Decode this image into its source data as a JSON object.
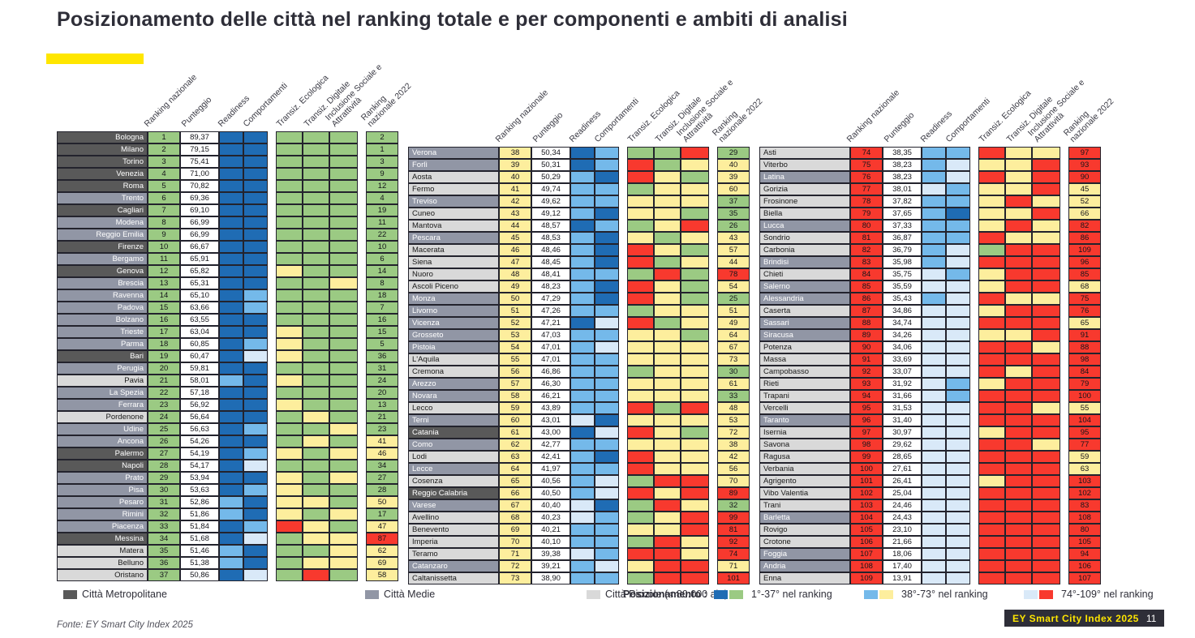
{
  "title": "Posizionamento delle città nel ranking totale e per componenti e ambiti di analisi",
  "accent_color": "#ffe600",
  "header_columns": [
    "Ranking nazionale",
    "Punteggio",
    "Readiness",
    "Comportamenti",
    "Transiz. Ecologica",
    "Transiz. Digitale",
    "Inclusione Sociale e Attrattività",
    "Ranking nazionale 2022"
  ],
  "palette": {
    "accent_terciles": {
      "1": "#9bca83",
      "2": "#fdee9d",
      "3": "#f8392e"
    },
    "blue_terciles": {
      "1": "#1f6cb4",
      "2": "#74b9ea",
      "3": "#d9e9f8"
    },
    "city_types": {
      "M": {
        "bg": "#595959",
        "fg": "#ffffff"
      },
      "Md": {
        "bg": "#9196a5",
        "fg": "#ffffff"
      },
      "P": {
        "bg": "#d9d9d9",
        "fg": "#1a1a1a"
      }
    }
  },
  "legend": {
    "city_types": [
      {
        "label": "Città Metropolitane",
        "color": "#595959"
      },
      {
        "label": "Città Medie",
        "color": "#9196a5"
      },
      {
        "label": "Città Piccole (< 80.000 ab.)",
        "color": "#d9d9d9"
      }
    ],
    "positioning_label": "Posizionamento :",
    "terciles": [
      {
        "label": "1°-37° nel ranking",
        "blue": "#1f6cb4",
        "accent": "#9bca83"
      },
      {
        "label": "38°-73° nel ranking",
        "blue": "#74b9ea",
        "accent": "#fdee9d"
      },
      {
        "label": "74°-109° nel ranking",
        "blue": "#d9e9f8",
        "accent": "#f8392e"
      }
    ]
  },
  "footer": {
    "source": "Fonte: EY Smart City Index 2025",
    "badge_title": "EY Smart City Index 2025",
    "badge_page": "11"
  },
  "chart_data": {
    "type": "table",
    "title": "Posizionamento delle città nel ranking totale e per componenti e ambiti di analisi",
    "columns": [
      "città",
      "tipo (M=metropolitana, Md=media, P=piccola)",
      "ranking nazionale",
      "punteggio",
      "readiness tercile (1=1°-37°,2=38°-73°,3=74°-109°)",
      "comportamenti tercile",
      "transiz. ecologica tercile",
      "transiz. digitale tercile",
      "inclusione sociale e attrattività tercile",
      "ranking nazionale 2022",
      "tercile 2022"
    ],
    "rows": [
      [
        "Bologna",
        "M",
        1,
        "89,37",
        1,
        1,
        1,
        1,
        1,
        2,
        1
      ],
      [
        "Milano",
        "M",
        2,
        "79,15",
        1,
        1,
        1,
        1,
        1,
        1,
        1
      ],
      [
        "Torino",
        "M",
        3,
        "75,41",
        1,
        1,
        1,
        1,
        1,
        3,
        1
      ],
      [
        "Venezia",
        "M",
        4,
        "71,00",
        1,
        1,
        1,
        1,
        1,
        9,
        1
      ],
      [
        "Roma",
        "M",
        5,
        "70,82",
        1,
        1,
        1,
        1,
        1,
        12,
        1
      ],
      [
        "Trento",
        "Md",
        6,
        "69,36",
        1,
        1,
        1,
        1,
        1,
        4,
        1
      ],
      [
        "Cagliari",
        "M",
        7,
        "69,10",
        1,
        1,
        1,
        1,
        1,
        19,
        1
      ],
      [
        "Modena",
        "Md",
        8,
        "66,99",
        1,
        1,
        1,
        1,
        1,
        11,
        1
      ],
      [
        "Reggio Emilia",
        "Md",
        9,
        "66,99",
        1,
        1,
        1,
        1,
        1,
        22,
        1
      ],
      [
        "Firenze",
        "M",
        10,
        "66,67",
        1,
        1,
        1,
        1,
        1,
        10,
        1
      ],
      [
        "Bergamo",
        "Md",
        11,
        "65,91",
        1,
        1,
        1,
        1,
        1,
        6,
        1
      ],
      [
        "Genova",
        "M",
        12,
        "65,82",
        1,
        1,
        2,
        1,
        1,
        14,
        1
      ],
      [
        "Brescia",
        "Md",
        13,
        "65,31",
        1,
        1,
        1,
        1,
        2,
        8,
        1
      ],
      [
        "Ravenna",
        "Md",
        14,
        "65,10",
        1,
        2,
        1,
        1,
        1,
        18,
        1
      ],
      [
        "Padova",
        "Md",
        15,
        "63,66",
        1,
        2,
        1,
        1,
        1,
        7,
        1
      ],
      [
        "Bolzano",
        "Md",
        16,
        "63,55",
        1,
        1,
        1,
        1,
        1,
        16,
        1
      ],
      [
        "Trieste",
        "Md",
        17,
        "63,04",
        1,
        1,
        2,
        1,
        1,
        15,
        1
      ],
      [
        "Parma",
        "Md",
        18,
        "60,85",
        1,
        2,
        2,
        1,
        1,
        5,
        1
      ],
      [
        "Bari",
        "M",
        19,
        "60,47",
        1,
        3,
        2,
        1,
        1,
        36,
        1
      ],
      [
        "Perugia",
        "Md",
        20,
        "59,81",
        1,
        1,
        1,
        1,
        1,
        31,
        1
      ],
      [
        "Pavia",
        "P",
        21,
        "58,01",
        2,
        1,
        2,
        1,
        1,
        24,
        1
      ],
      [
        "La Spezia",
        "Md",
        22,
        "57,18",
        1,
        1,
        1,
        1,
        1,
        20,
        1
      ],
      [
        "Ferrara",
        "Md",
        23,
        "56,92",
        1,
        1,
        2,
        1,
        1,
        13,
        1
      ],
      [
        "Pordenone",
        "P",
        24,
        "56,64",
        1,
        1,
        1,
        2,
        1,
        21,
        1
      ],
      [
        "Udine",
        "Md",
        25,
        "56,63",
        1,
        2,
        1,
        1,
        2,
        23,
        1
      ],
      [
        "Ancona",
        "Md",
        26,
        "54,26",
        1,
        1,
        1,
        2,
        1,
        41,
        2
      ],
      [
        "Palermo",
        "M",
        27,
        "54,19",
        1,
        2,
        2,
        1,
        2,
        46,
        2
      ],
      [
        "Napoli",
        "M",
        28,
        "54,17",
        1,
        3,
        1,
        1,
        1,
        34,
        1
      ],
      [
        "Prato",
        "Md",
        29,
        "53,94",
        1,
        1,
        2,
        1,
        2,
        27,
        1
      ],
      [
        "Pisa",
        "Md",
        30,
        "53,63",
        1,
        2,
        2,
        1,
        1,
        28,
        1
      ],
      [
        "Pesaro",
        "Md",
        31,
        "52,86",
        2,
        1,
        2,
        2,
        1,
        50,
        2
      ],
      [
        "Rimini",
        "Md",
        32,
        "51,86",
        2,
        1,
        2,
        1,
        2,
        17,
        1
      ],
      [
        "Piacenza",
        "Md",
        33,
        "51,84",
        1,
        2,
        3,
        2,
        1,
        47,
        2
      ],
      [
        "Messina",
        "M",
        34,
        "51,68",
        1,
        3,
        1,
        2,
        2,
        87,
        3
      ],
      [
        "Matera",
        "P",
        35,
        "51,46",
        2,
        1,
        1,
        1,
        2,
        62,
        2
      ],
      [
        "Belluno",
        "P",
        36,
        "51,38",
        2,
        1,
        1,
        2,
        2,
        69,
        2
      ],
      [
        "Oristano",
        "P",
        37,
        "50,86",
        1,
        3,
        1,
        3,
        1,
        58,
        2
      ],
      [
        "Verona",
        "Md",
        38,
        "50,34",
        1,
        2,
        1,
        1,
        3,
        29,
        1
      ],
      [
        "Forlì",
        "Md",
        39,
        "50,31",
        1,
        2,
        3,
        1,
        2,
        40,
        2
      ],
      [
        "Aosta",
        "P",
        40,
        "50,29",
        2,
        1,
        3,
        2,
        1,
        39,
        2
      ],
      [
        "Fermo",
        "P",
        41,
        "49,74",
        2,
        2,
        1,
        2,
        2,
        60,
        2
      ],
      [
        "Treviso",
        "Md",
        42,
        "49,62",
        2,
        2,
        2,
        2,
        2,
        37,
        1
      ],
      [
        "Cuneo",
        "P",
        43,
        "49,12",
        2,
        1,
        2,
        2,
        1,
        35,
        1
      ],
      [
        "Mantova",
        "P",
        44,
        "48,57",
        1,
        2,
        1,
        2,
        3,
        26,
        1
      ],
      [
        "Pescara",
        "Md",
        45,
        "48,53",
        2,
        1,
        2,
        1,
        2,
        43,
        2
      ],
      [
        "Macerata",
        "P",
        46,
        "48,46",
        2,
        1,
        3,
        2,
        1,
        57,
        2
      ],
      [
        "Siena",
        "P",
        47,
        "48,45",
        2,
        1,
        3,
        1,
        2,
        44,
        2
      ],
      [
        "Nuoro",
        "P",
        48,
        "48,41",
        2,
        2,
        1,
        3,
        1,
        78,
        3
      ],
      [
        "Ascoli Piceno",
        "P",
        49,
        "48,23",
        2,
        1,
        3,
        2,
        1,
        54,
        2
      ],
      [
        "Monza",
        "Md",
        50,
        "47,29",
        2,
        1,
        3,
        2,
        1,
        25,
        1
      ],
      [
        "Livorno",
        "Md",
        51,
        "47,26",
        2,
        2,
        1,
        2,
        2,
        51,
        2
      ],
      [
        "Vicenza",
        "Md",
        52,
        "47,21",
        1,
        3,
        3,
        1,
        2,
        49,
        2
      ],
      [
        "Grosseto",
        "Md",
        53,
        "47,03",
        2,
        2,
        2,
        2,
        1,
        64,
        2
      ],
      [
        "Pistoia",
        "Md",
        54,
        "47,01",
        2,
        3,
        2,
        2,
        2,
        67,
        2
      ],
      [
        "L'Aquila",
        "P",
        55,
        "47,01",
        2,
        2,
        2,
        2,
        2,
        73,
        2
      ],
      [
        "Cremona",
        "P",
        56,
        "46,86",
        2,
        2,
        1,
        2,
        2,
        30,
        1
      ],
      [
        "Arezzo",
        "Md",
        57,
        "46,30",
        2,
        2,
        2,
        2,
        2,
        61,
        2
      ],
      [
        "Novara",
        "Md",
        58,
        "46,21",
        2,
        2,
        2,
        2,
        2,
        33,
        1
      ],
      [
        "Lecco",
        "P",
        59,
        "43,89",
        2,
        2,
        3,
        1,
        3,
        48,
        2
      ],
      [
        "Terni",
        "Md",
        60,
        "43,01",
        3,
        1,
        2,
        2,
        2,
        53,
        2
      ],
      [
        "Catania",
        "M",
        61,
        "43,00",
        1,
        3,
        3,
        2,
        1,
        72,
        2
      ],
      [
        "Como",
        "Md",
        62,
        "42,77",
        2,
        2,
        2,
        2,
        2,
        38,
        2
      ],
      [
        "Lodi",
        "P",
        63,
        "42,41",
        2,
        1,
        3,
        2,
        2,
        42,
        2
      ],
      [
        "Lecce",
        "Md",
        64,
        "41,97",
        2,
        2,
        3,
        2,
        2,
        56,
        2
      ],
      [
        "Cosenza",
        "P",
        65,
        "40,56",
        2,
        3,
        1,
        3,
        3,
        70,
        2
      ],
      [
        "Reggio Calabria",
        "M",
        66,
        "40,50",
        2,
        3,
        3,
        2,
        3,
        89,
        3
      ],
      [
        "Varese",
        "Md",
        67,
        "40,40",
        3,
        1,
        1,
        3,
        2,
        32,
        1
      ],
      [
        "Avellino",
        "P",
        68,
        "40,23",
        3,
        2,
        1,
        2,
        3,
        99,
        3
      ],
      [
        "Benevento",
        "P",
        69,
        "40,21",
        2,
        2,
        2,
        2,
        3,
        81,
        3
      ],
      [
        "Imperia",
        "P",
        70,
        "40,10",
        2,
        2,
        1,
        3,
        2,
        92,
        3
      ],
      [
        "Teramo",
        "P",
        71,
        "39,38",
        3,
        2,
        3,
        3,
        2,
        74,
        3
      ],
      [
        "Catanzaro",
        "Md",
        72,
        "39,21",
        2,
        3,
        2,
        3,
        3,
        71,
        2
      ],
      [
        "Caltanissetta",
        "P",
        73,
        "38,90",
        2,
        2,
        1,
        3,
        3,
        101,
        3
      ],
      [
        "Asti",
        "P",
        74,
        "38,35",
        2,
        2,
        3,
        2,
        2,
        97,
        3
      ],
      [
        "Viterbo",
        "P",
        75,
        "38,23",
        2,
        3,
        2,
        2,
        3,
        93,
        3
      ],
      [
        "Latina",
        "Md",
        76,
        "38,23",
        2,
        3,
        3,
        2,
        3,
        90,
        3
      ],
      [
        "Gorizia",
        "P",
        77,
        "38,01",
        3,
        2,
        2,
        2,
        3,
        45,
        2
      ],
      [
        "Frosinone",
        "P",
        78,
        "37,82",
        2,
        2,
        2,
        3,
        2,
        52,
        2
      ],
      [
        "Biella",
        "P",
        79,
        "37,65",
        2,
        1,
        2,
        2,
        3,
        66,
        2
      ],
      [
        "Lucca",
        "Md",
        80,
        "37,33",
        2,
        2,
        2,
        3,
        2,
        82,
        3
      ],
      [
        "Sondrio",
        "P",
        81,
        "36,87",
        2,
        2,
        3,
        2,
        2,
        86,
        3
      ],
      [
        "Carbonia",
        "P",
        82,
        "36,79",
        2,
        3,
        1,
        3,
        3,
        109,
        3
      ],
      [
        "Brindisi",
        "Md",
        83,
        "35,98",
        2,
        3,
        3,
        3,
        3,
        96,
        3
      ],
      [
        "Chieti",
        "P",
        84,
        "35,75",
        3,
        2,
        2,
        3,
        3,
        85,
        3
      ],
      [
        "Salerno",
        "Md",
        85,
        "35,59",
        3,
        3,
        2,
        3,
        3,
        68,
        2
      ],
      [
        "Alessandria",
        "Md",
        86,
        "35,43",
        2,
        3,
        3,
        2,
        2,
        75,
        3
      ],
      [
        "Caserta",
        "P",
        87,
        "34,86",
        3,
        3,
        2,
        3,
        3,
        76,
        3
      ],
      [
        "Sassari",
        "Md",
        88,
        "34,74",
        3,
        3,
        3,
        3,
        3,
        65,
        2
      ],
      [
        "Siracusa",
        "Md",
        89,
        "34,26",
        3,
        3,
        2,
        2,
        3,
        91,
        3
      ],
      [
        "Potenza",
        "P",
        90,
        "34,06",
        3,
        3,
        3,
        3,
        2,
        88,
        3
      ],
      [
        "Massa",
        "P",
        91,
        "33,69",
        3,
        3,
        3,
        3,
        3,
        98,
        3
      ],
      [
        "Campobasso",
        "P",
        92,
        "33,07",
        3,
        3,
        3,
        2,
        3,
        84,
        3
      ],
      [
        "Rieti",
        "P",
        93,
        "31,92",
        3,
        2,
        2,
        3,
        3,
        79,
        3
      ],
      [
        "Trapani",
        "P",
        94,
        "31,66",
        3,
        2,
        3,
        3,
        3,
        100,
        3
      ],
      [
        "Vercelli",
        "P",
        95,
        "31,53",
        3,
        3,
        3,
        3,
        2,
        55,
        2
      ],
      [
        "Taranto",
        "Md",
        96,
        "31,40",
        3,
        3,
        3,
        3,
        3,
        104,
        3
      ],
      [
        "Isernia",
        "P",
        97,
        "30,97",
        3,
        3,
        2,
        3,
        3,
        95,
        3
      ],
      [
        "Savona",
        "P",
        98,
        "29,62",
        3,
        3,
        3,
        3,
        2,
        77,
        3
      ],
      [
        "Ragusa",
        "P",
        99,
        "28,65",
        3,
        3,
        3,
        3,
        3,
        59,
        2
      ],
      [
        "Verbania",
        "P",
        100,
        "27,61",
        3,
        3,
        3,
        3,
        3,
        63,
        2
      ],
      [
        "Agrigento",
        "P",
        101,
        "26,41",
        3,
        3,
        2,
        3,
        3,
        103,
        3
      ],
      [
        "Vibo Valentia",
        "P",
        102,
        "25,04",
        3,
        3,
        3,
        3,
        3,
        102,
        3
      ],
      [
        "Trani",
        "P",
        103,
        "24,46",
        3,
        3,
        3,
        3,
        3,
        83,
        3
      ],
      [
        "Barletta",
        "Md",
        104,
        "24,43",
        3,
        3,
        3,
        3,
        3,
        108,
        3
      ],
      [
        "Rovigo",
        "P",
        105,
        "23,10",
        3,
        3,
        3,
        3,
        3,
        80,
        3
      ],
      [
        "Crotone",
        "P",
        106,
        "21,66",
        3,
        3,
        3,
        3,
        3,
        105,
        3
      ],
      [
        "Foggia",
        "Md",
        107,
        "18,06",
        3,
        3,
        3,
        3,
        3,
        94,
        3
      ],
      [
        "Andria",
        "Md",
        108,
        "17,40",
        3,
        3,
        3,
        3,
        3,
        106,
        3
      ],
      [
        "Enna",
        "P",
        109,
        "13,91",
        3,
        3,
        3,
        3,
        3,
        107,
        3
      ]
    ]
  }
}
